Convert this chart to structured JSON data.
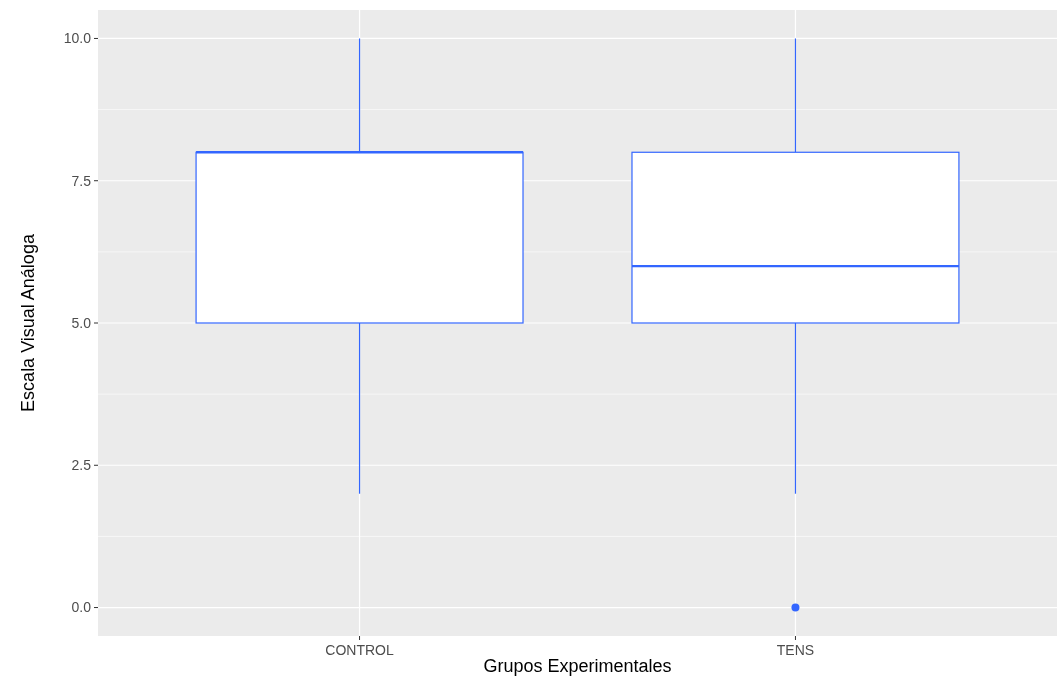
{
  "chart_data": {
    "type": "box",
    "xlabel": "Grupos Experimentales",
    "ylabel": "Escala Visual Análoga",
    "categories": [
      "CONTROL",
      "TENS"
    ],
    "series": [
      {
        "color": "#3366ff",
        "boxes": [
          {
            "low": 2,
            "q1": 5,
            "median": 8,
            "q3": 8,
            "high": 10
          },
          {
            "low": 2,
            "q1": 5,
            "median": 6,
            "q3": 8,
            "high": 10,
            "outliers": [
              0
            ]
          }
        ]
      }
    ],
    "ylim": [
      -0.5,
      10.5
    ],
    "yticks": [
      {
        "value": 0,
        "label": "0.0"
      },
      {
        "value": 2.5,
        "label": "2.5"
      },
      {
        "value": 5,
        "label": "5.0"
      },
      {
        "value": 7.5,
        "label": "7.5"
      },
      {
        "value": 10,
        "label": "10.0"
      }
    ],
    "grid": true
  }
}
